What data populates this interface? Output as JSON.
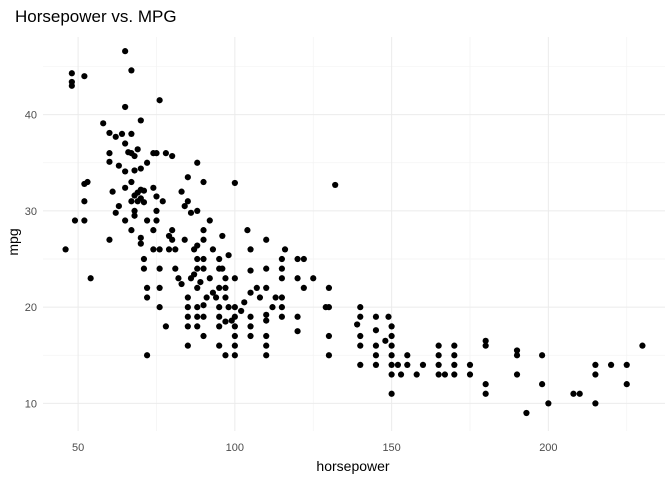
{
  "chart_data": {
    "type": "scatter",
    "title": "Horsepower vs. MPG",
    "xlabel": "horsepower",
    "ylabel": "mpg",
    "xlim": [
      38.8,
      237.2
    ],
    "ylim": [
      7.13,
      48.07
    ],
    "x_ticks": [
      50,
      100,
      150,
      200
    ],
    "y_ticks": [
      10,
      20,
      30,
      40
    ],
    "x_tick_labels": [
      "50",
      "100",
      "150",
      "200"
    ],
    "y_tick_labels": [
      "10",
      "20",
      "30",
      "40"
    ],
    "grid": true,
    "legend": "none",
    "point_color": "#000000",
    "points": [
      [
        46,
        26
      ],
      [
        48,
        43
      ],
      [
        48,
        43.4
      ],
      [
        48,
        44.3
      ],
      [
        49,
        29
      ],
      [
        52,
        44
      ],
      [
        52,
        29
      ],
      [
        52,
        31
      ],
      [
        52,
        32.8
      ],
      [
        53,
        33
      ],
      [
        54,
        23
      ],
      [
        58,
        39.1
      ],
      [
        60,
        36
      ],
      [
        60,
        35.1
      ],
      [
        60,
        38.1
      ],
      [
        60,
        27
      ],
      [
        61,
        32
      ],
      [
        62,
        37.7
      ],
      [
        62,
        29.8
      ],
      [
        63,
        34.7
      ],
      [
        63,
        30.5
      ],
      [
        64,
        38
      ],
      [
        65,
        46.6
      ],
      [
        65,
        40.8
      ],
      [
        65,
        37
      ],
      [
        65,
        32.4
      ],
      [
        65,
        29
      ],
      [
        65,
        34.1
      ],
      [
        66,
        36.1
      ],
      [
        67,
        44.6
      ],
      [
        67,
        36
      ],
      [
        67,
        38
      ],
      [
        67,
        33
      ],
      [
        67,
        31
      ],
      [
        67,
        28
      ],
      [
        68,
        31.6
      ],
      [
        68,
        29.5
      ],
      [
        68,
        35.7
      ],
      [
        68,
        34.2
      ],
      [
        68,
        30
      ],
      [
        69,
        36.4
      ],
      [
        69,
        31.9
      ],
      [
        69,
        31
      ],
      [
        70,
        39.4
      ],
      [
        70,
        34.4
      ],
      [
        70,
        32.2
      ],
      [
        70,
        31.3
      ],
      [
        70,
        26.6
      ],
      [
        70,
        27.2
      ],
      [
        71,
        32.1
      ],
      [
        71,
        30.9
      ],
      [
        71,
        25
      ],
      [
        71,
        24
      ],
      [
        72,
        35
      ],
      [
        72,
        29
      ],
      [
        72,
        15
      ],
      [
        72,
        21
      ],
      [
        72,
        22
      ],
      [
        74,
        36
      ],
      [
        74,
        32.4
      ],
      [
        74,
        28
      ],
      [
        74,
        26
      ],
      [
        75,
        36
      ],
      [
        75,
        30
      ],
      [
        75,
        29
      ],
      [
        75,
        31.5
      ],
      [
        76,
        41.5
      ],
      [
        76,
        26
      ],
      [
        76,
        24
      ],
      [
        76,
        22
      ],
      [
        76,
        20
      ],
      [
        77,
        31
      ],
      [
        78,
        36
      ],
      [
        78,
        18
      ],
      [
        79,
        26
      ],
      [
        79,
        27.4
      ],
      [
        80,
        28
      ],
      [
        80,
        27
      ],
      [
        80,
        35.7
      ],
      [
        81,
        26
      ],
      [
        81,
        24
      ],
      [
        82,
        23
      ],
      [
        83,
        32
      ],
      [
        83,
        22.4
      ],
      [
        84,
        30.5
      ],
      [
        84,
        27
      ],
      [
        85,
        33.5
      ],
      [
        85,
        31
      ],
      [
        85,
        21
      ],
      [
        85,
        20
      ],
      [
        85,
        19
      ],
      [
        85,
        18
      ],
      [
        85,
        16
      ],
      [
        86,
        29.8
      ],
      [
        86,
        23
      ],
      [
        87,
        23.4
      ],
      [
        87,
        26
      ],
      [
        88,
        26.4
      ],
      [
        88,
        24
      ],
      [
        88,
        30
      ],
      [
        88,
        35
      ],
      [
        88,
        25
      ],
      [
        88,
        22
      ],
      [
        88,
        20
      ],
      [
        88,
        19
      ],
      [
        88,
        18
      ],
      [
        89,
        22.6
      ],
      [
        90,
        27
      ],
      [
        90,
        28
      ],
      [
        90,
        25
      ],
      [
        90,
        33
      ],
      [
        90,
        24
      ],
      [
        90,
        20.2
      ],
      [
        90,
        19
      ],
      [
        90,
        17
      ],
      [
        91,
        21
      ],
      [
        92,
        29
      ],
      [
        92,
        23
      ],
      [
        93,
        21.5
      ],
      [
        93,
        26
      ],
      [
        94,
        21
      ],
      [
        95,
        22
      ],
      [
        95,
        24
      ],
      [
        95,
        25
      ],
      [
        95,
        20
      ],
      [
        95,
        19
      ],
      [
        95,
        18
      ],
      [
        95,
        16
      ],
      [
        96,
        27.4
      ],
      [
        96,
        24
      ],
      [
        97,
        21
      ],
      [
        97,
        18.5
      ],
      [
        97,
        22
      ],
      [
        97,
        23
      ],
      [
        97,
        15
      ],
      [
        98,
        25.4
      ],
      [
        98,
        20
      ],
      [
        99,
        18.6
      ],
      [
        100,
        32.9
      ],
      [
        100,
        23
      ],
      [
        100,
        20
      ],
      [
        100,
        19
      ],
      [
        100,
        18
      ],
      [
        100,
        17
      ],
      [
        100,
        16
      ],
      [
        100,
        15
      ],
      [
        102,
        19.6
      ],
      [
        103,
        20.5
      ],
      [
        104,
        28
      ],
      [
        105,
        26
      ],
      [
        105,
        23.8
      ],
      [
        105,
        21.5
      ],
      [
        105,
        19
      ],
      [
        105,
        18
      ],
      [
        105,
        17
      ],
      [
        107,
        22
      ],
      [
        108,
        21
      ],
      [
        110,
        27
      ],
      [
        110,
        24
      ],
      [
        110,
        22
      ],
      [
        110,
        19.2
      ],
      [
        110,
        18.6
      ],
      [
        110,
        17
      ],
      [
        110,
        16
      ],
      [
        110,
        15
      ],
      [
        112,
        20
      ],
      [
        113,
        21
      ],
      [
        115,
        25
      ],
      [
        115,
        24
      ],
      [
        115,
        23
      ],
      [
        115,
        21
      ],
      [
        115,
        20
      ],
      [
        115,
        19
      ],
      [
        116,
        26
      ],
      [
        120,
        25
      ],
      [
        120,
        23
      ],
      [
        120,
        19
      ],
      [
        120,
        17.5
      ],
      [
        122,
        25
      ],
      [
        122,
        22
      ],
      [
        125,
        23
      ],
      [
        129,
        20
      ],
      [
        130,
        22
      ],
      [
        130,
        20
      ],
      [
        130,
        17
      ],
      [
        130,
        15
      ],
      [
        132,
        32.7
      ],
      [
        139,
        18.2
      ],
      [
        140,
        20
      ],
      [
        140,
        19
      ],
      [
        140,
        17
      ],
      [
        140,
        16
      ],
      [
        140,
        14
      ],
      [
        145,
        19
      ],
      [
        145,
        17.6
      ],
      [
        145,
        16
      ],
      [
        145,
        15
      ],
      [
        145,
        14
      ],
      [
        148,
        16.5
      ],
      [
        149,
        19
      ],
      [
        150,
        18
      ],
      [
        150,
        17
      ],
      [
        150,
        16
      ],
      [
        150,
        15
      ],
      [
        150,
        14
      ],
      [
        150,
        13
      ],
      [
        150,
        11
      ],
      [
        152,
        14
      ],
      [
        153,
        13
      ],
      [
        155,
        15
      ],
      [
        155,
        14
      ],
      [
        158,
        13
      ],
      [
        160,
        14
      ],
      [
        165,
        16
      ],
      [
        165,
        15
      ],
      [
        165,
        14
      ],
      [
        165,
        13
      ],
      [
        167,
        13
      ],
      [
        170,
        16
      ],
      [
        170,
        15
      ],
      [
        170,
        14
      ],
      [
        170,
        13
      ],
      [
        175,
        14
      ],
      [
        175,
        13
      ],
      [
        180,
        16.5
      ],
      [
        180,
        16
      ],
      [
        180,
        12
      ],
      [
        180,
        11
      ],
      [
        190,
        15.5
      ],
      [
        190,
        15
      ],
      [
        190,
        13
      ],
      [
        193,
        9
      ],
      [
        198,
        15
      ],
      [
        198,
        12
      ],
      [
        200,
        10
      ],
      [
        208,
        11
      ],
      [
        210,
        11
      ],
      [
        215,
        14
      ],
      [
        215,
        13
      ],
      [
        215,
        10
      ],
      [
        220,
        14
      ],
      [
        225,
        14
      ],
      [
        225,
        12
      ],
      [
        230,
        16
      ]
    ]
  }
}
